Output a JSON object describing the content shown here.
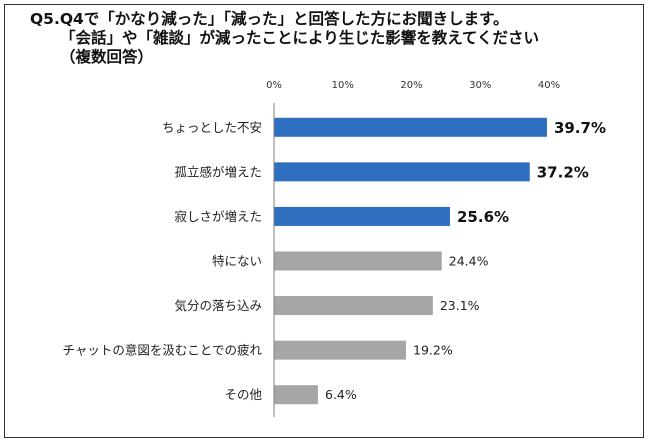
{
  "title_lines": [
    "Q5.Q4で「かなり減った」「減った」と回答した方にお聞きします。",
    "「会話」や「雑談」が減ったことにより生じた影響を教えてください",
    "（複数回答）"
  ],
  "chart_data": {
    "type": "bar",
    "orientation": "horizontal",
    "categories": [
      "ちょっとした不安",
      "孤立感が増えた",
      "寂しさが増えた",
      "特にない",
      "気分の落ち込み",
      "チャットの意図を汲むことでの疲れ",
      "その他"
    ],
    "values": [
      39.7,
      37.2,
      25.6,
      24.4,
      23.1,
      19.2,
      6.4
    ],
    "value_labels": [
      "39.7%",
      "37.2%",
      "25.6%",
      "24.4%",
      "23.1%",
      "19.2%",
      "6.4%"
    ],
    "highlighted": [
      true,
      true,
      true,
      false,
      false,
      false,
      false
    ],
    "xlim": [
      0,
      40
    ],
    "xticks": [
      "0%",
      "10%",
      "20%",
      "30%",
      "40%"
    ],
    "grid": false,
    "colors": {
      "highlight": "#2E6FC0",
      "normal": "#A6A6A6",
      "axis": "#808080"
    }
  }
}
